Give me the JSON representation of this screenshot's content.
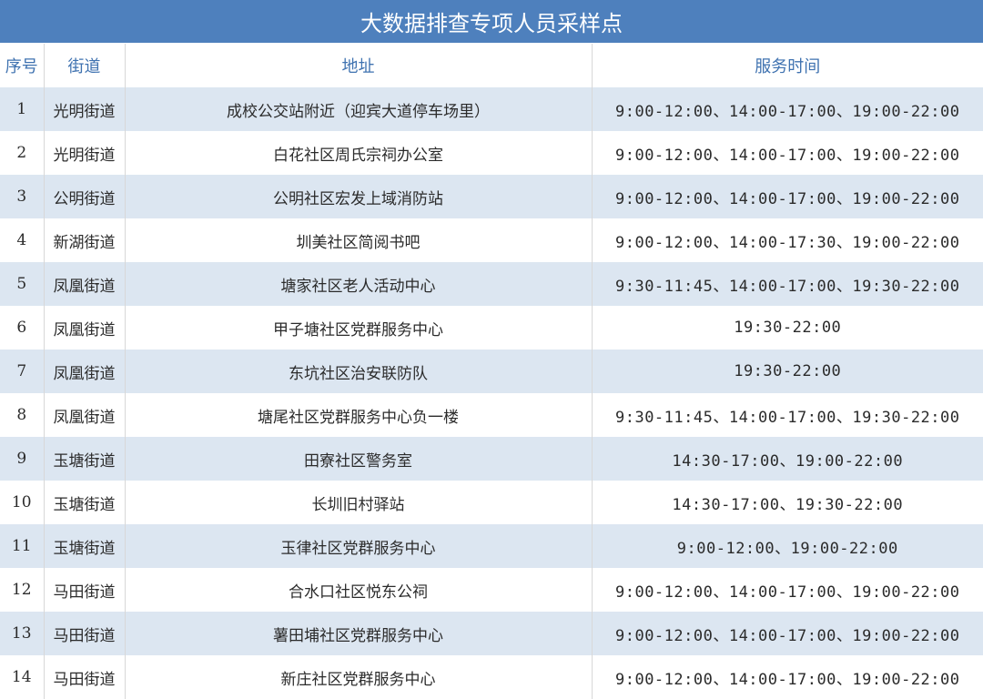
{
  "title": "大数据排查专项人员采样点",
  "colors": {
    "title_bg": "#4e80bd",
    "header_text": "#3f72b0",
    "alt_row": "#dce6f1"
  },
  "headers": [
    "序号",
    "街道",
    "地址",
    "服务时间"
  ],
  "rows": [
    {
      "no": "1",
      "street": "光明街道",
      "address": "成校公交站附近（迎宾大道停车场里）",
      "time": "9:00-12:00、14:00-17:00、19:00-22:00"
    },
    {
      "no": "2",
      "street": "光明街道",
      "address": "白花社区周氏宗祠办公室",
      "time": "9:00-12:00、14:00-17:00、19:00-22:00"
    },
    {
      "no": "3",
      "street": "公明街道",
      "address": "公明社区宏发上域消防站",
      "time": "9:00-12:00、14:00-17:00、19:00-22:00"
    },
    {
      "no": "4",
      "street": "新湖街道",
      "address": "圳美社区简阅书吧",
      "time": "9:00-12:00、14:00-17:30、19:00-22:00"
    },
    {
      "no": "5",
      "street": "凤凰街道",
      "address": "塘家社区老人活动中心",
      "time": "9:30-11:45、14:00-17:00、19:30-22:00"
    },
    {
      "no": "6",
      "street": "凤凰街道",
      "address": "甲子塘社区党群服务中心",
      "time": "19:30-22:00"
    },
    {
      "no": "7",
      "street": "凤凰街道",
      "address": "东坑社区治安联防队",
      "time": "19:30-22:00"
    },
    {
      "no": "8",
      "street": "凤凰街道",
      "address": "塘尾社区党群服务中心负一楼",
      "time": "9:30-11:45、14:00-17:00、19:30-22:00"
    },
    {
      "no": "9",
      "street": "玉塘街道",
      "address": "田寮社区警务室",
      "time": "14:30-17:00、19:00-22:00"
    },
    {
      "no": "10",
      "street": "玉塘街道",
      "address": "长圳旧村驿站",
      "time": "14:30-17:00、19:30-22:00"
    },
    {
      "no": "11",
      "street": "玉塘街道",
      "address": "玉律社区党群服务中心",
      "time": "9:00-12:00、19:00-22:00"
    },
    {
      "no": "12",
      "street": "马田街道",
      "address": "合水口社区悦东公祠",
      "time": "9:00-12:00、14:00-17:00、19:00-22:00"
    },
    {
      "no": "13",
      "street": "马田街道",
      "address": "薯田埔社区党群服务中心",
      "time": "9:00-12:00、14:00-17:00、19:00-22:00"
    },
    {
      "no": "14",
      "street": "马田街道",
      "address": "新庄社区党群服务中心",
      "time": "9:00-12:00、14:00-17:00、19:00-22:00"
    }
  ]
}
